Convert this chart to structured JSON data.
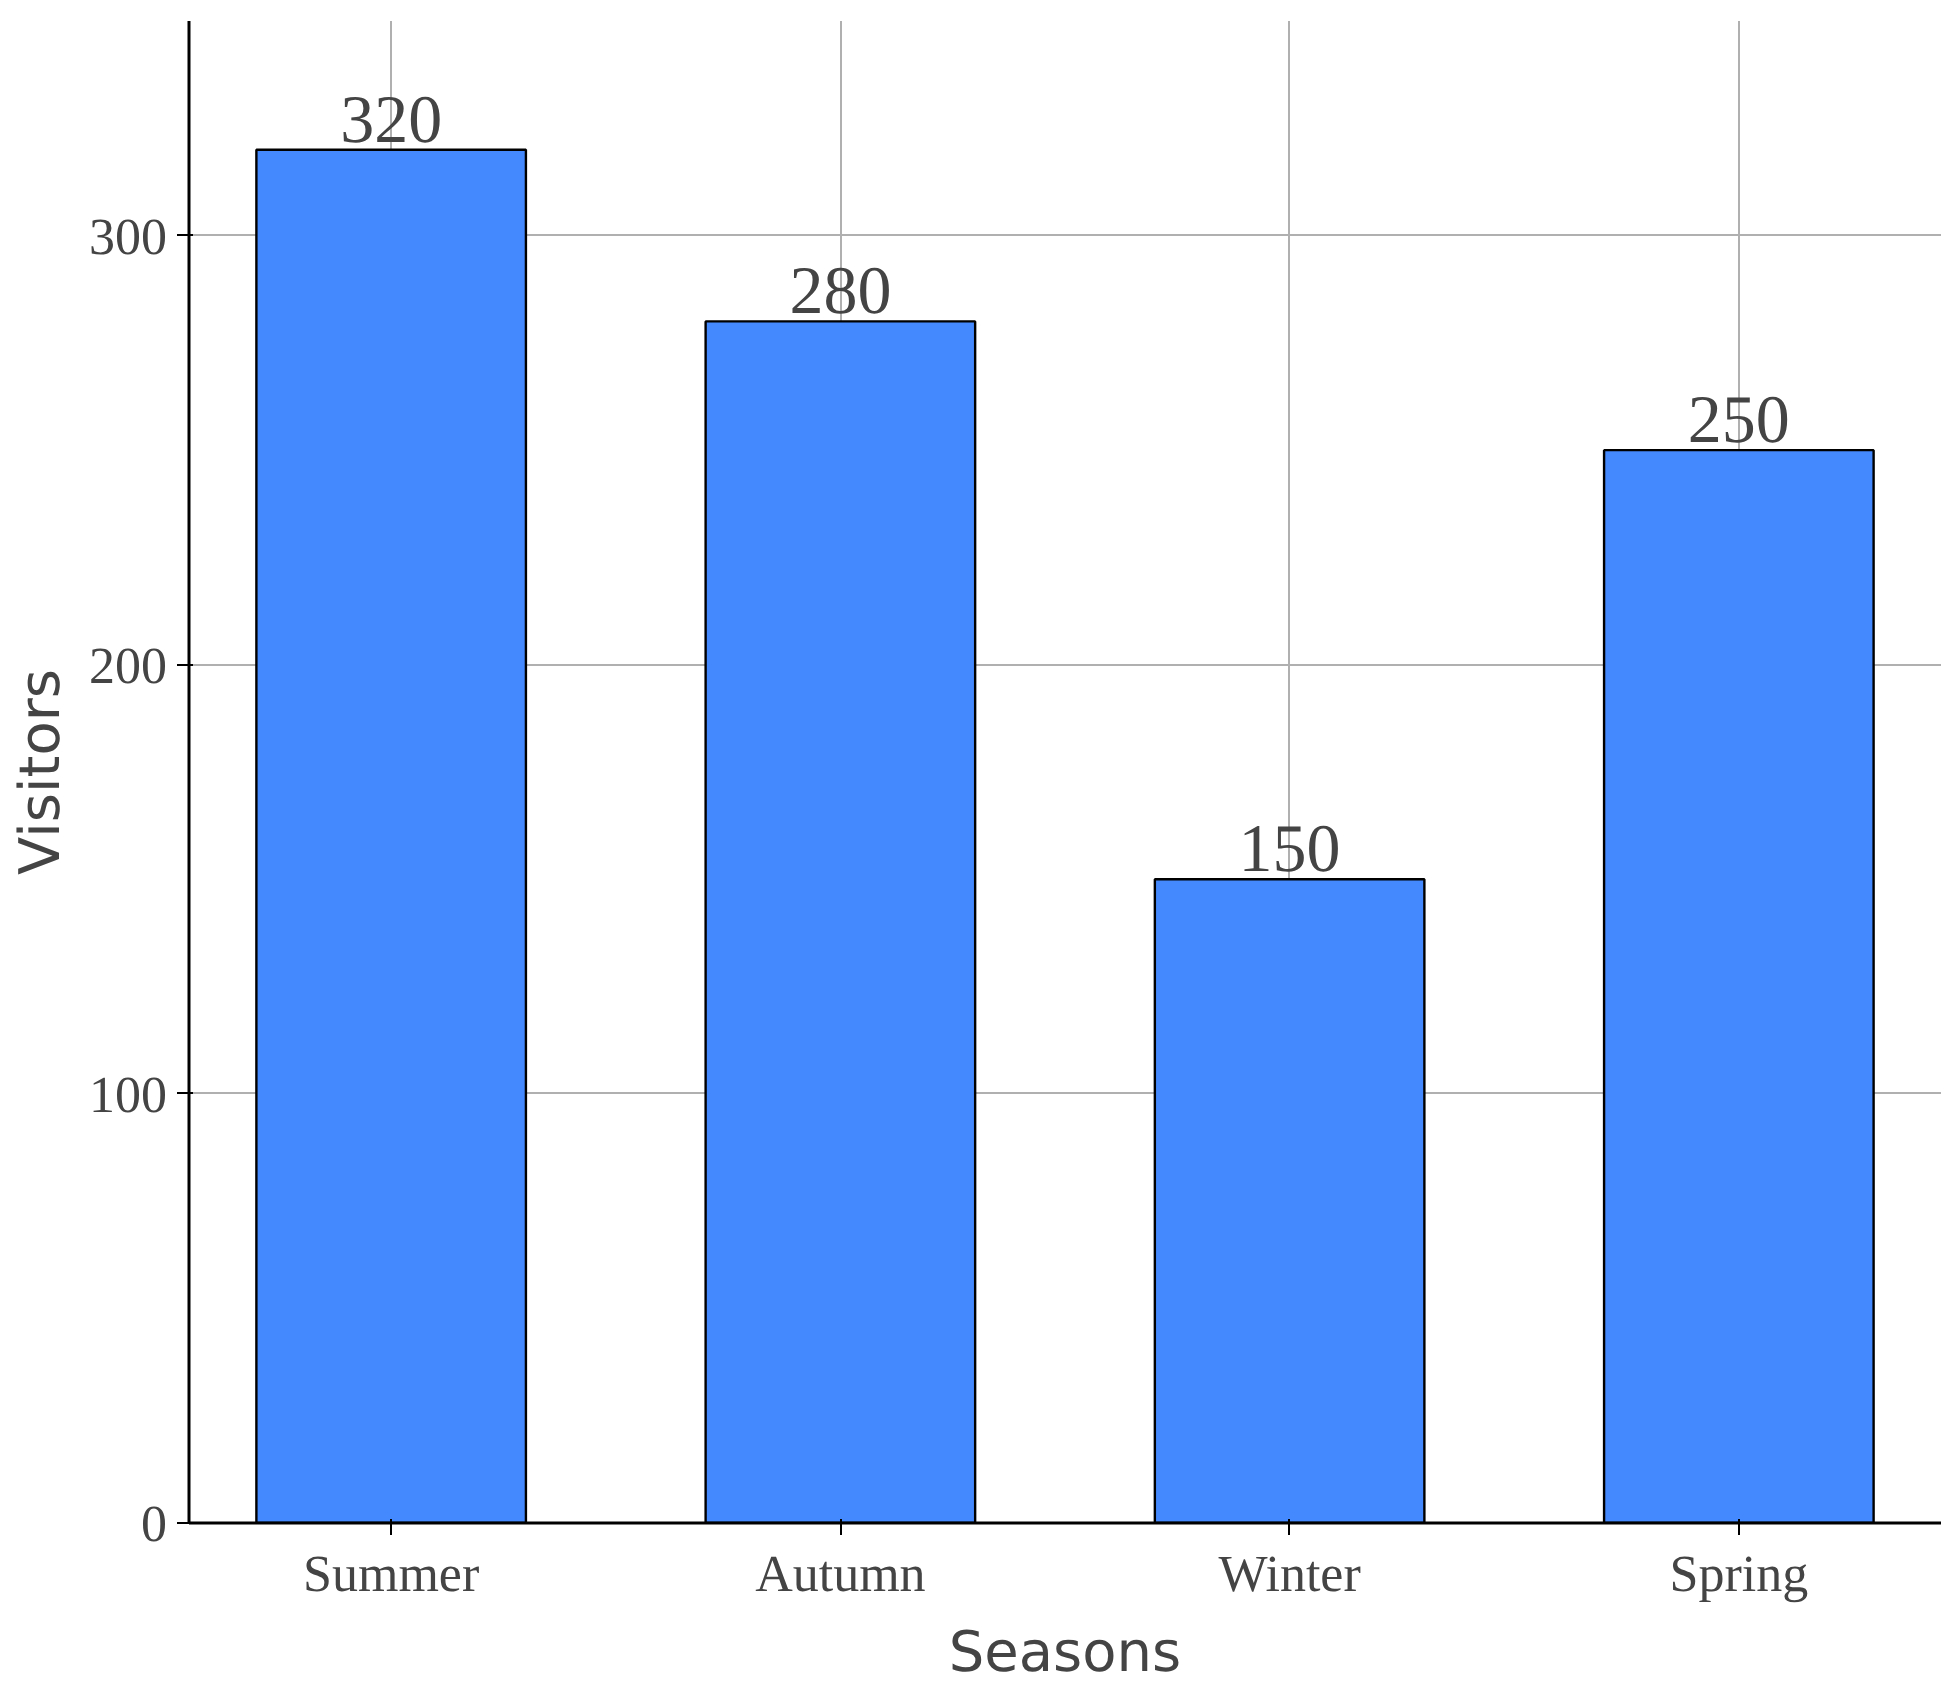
{
  "chart_data": {
    "type": "bar",
    "xlabel": "Seasons",
    "ylabel": "Visitors",
    "categories": [
      "Summer",
      "Autumn",
      "Winter",
      "Spring"
    ],
    "values": [
      320,
      280,
      150,
      250
    ],
    "color": "#4589ff",
    "ylim": [
      0,
      350
    ],
    "yticks": [
      0,
      100,
      200,
      300
    ],
    "grid": true,
    "data_labels": true
  }
}
